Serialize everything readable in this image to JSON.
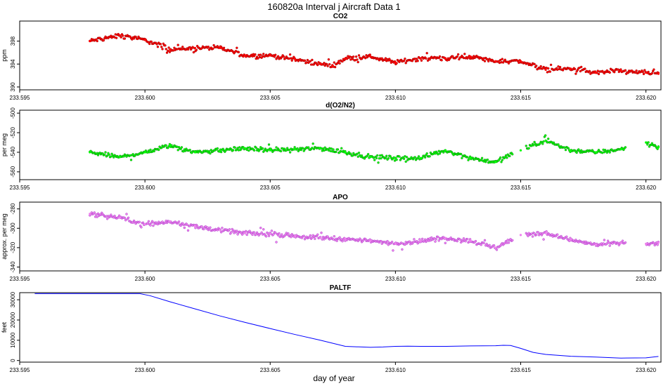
{
  "figure": {
    "title": "160820a   Interval j Aircraft Data 1",
    "xlabel": "day of year"
  },
  "chart_data": [
    {
      "type": "scatter",
      "title": "CO2",
      "xlabel": "day of year",
      "ylabel": "ppm",
      "xlim": [
        233.595,
        233.6206
      ],
      "ylim": [
        389.5,
        401.5
      ],
      "xticks": [
        "233.595",
        "233.600",
        "233.605",
        "233.610",
        "233.615",
        "233.620"
      ],
      "yticks": [
        "390",
        "394",
        "398"
      ],
      "grid": false,
      "color": "#ff0000",
      "x": [
        233.5978,
        233.599,
        233.6,
        233.601,
        233.602,
        233.603,
        233.604,
        233.605,
        233.606,
        233.607,
        233.6075,
        233.608,
        233.609,
        233.61,
        233.611,
        233.612,
        233.613,
        233.614,
        233.615,
        233.616,
        233.617,
        233.618,
        233.619,
        233.62,
        233.6205
      ],
      "y": [
        398.0,
        399.0,
        398.2,
        396.5,
        396.8,
        396.8,
        395.5,
        395.5,
        394.8,
        394.0,
        393.7,
        395.0,
        395.3,
        394.3,
        395.0,
        395.0,
        395.3,
        394.5,
        394.5,
        393.0,
        393.2,
        392.5,
        392.8,
        392.5,
        392.3
      ]
    },
    {
      "type": "scatter",
      "title": "d(O2/N2)",
      "xlabel": "day of year",
      "ylabel": "per meg",
      "xlim": [
        233.595,
        233.6206
      ],
      "ylim": [
        -568,
        -497
      ],
      "xticks": [
        "233.595",
        "233.600",
        "233.605",
        "233.610",
        "233.615",
        "233.620"
      ],
      "yticks": [
        "-500",
        "-520",
        "-540",
        "-560"
      ],
      "grid": false,
      "color": "#00ff00",
      "x": [
        233.5978,
        233.599,
        233.6,
        233.601,
        233.602,
        233.603,
        233.604,
        233.605,
        233.606,
        233.607,
        233.608,
        233.609,
        233.61,
        233.611,
        233.612,
        233.613,
        233.614,
        233.615,
        233.616,
        233.617,
        233.618,
        233.619,
        233.62,
        233.6205
      ],
      "y": [
        -540,
        -545,
        -540,
        -533,
        -540,
        -538,
        -536,
        -538,
        -537,
        -536,
        -540,
        -545,
        -546,
        -546,
        -538,
        -546,
        -550,
        -538,
        -528,
        -538,
        -540,
        -537,
        -530,
        -535
      ]
    },
    {
      "type": "scatter",
      "title": "APO",
      "xlabel": "day of year",
      "ylabel": "approx. per meg",
      "xlim": [
        233.595,
        233.6206
      ],
      "ylim": [
        -344,
        -273
      ],
      "xticks": [
        "233.595",
        "233.600",
        "233.605",
        "233.610",
        "233.615",
        "233.620"
      ],
      "yticks": [
        "-280",
        "-300",
        "-320",
        "-340"
      ],
      "grid": false,
      "color": "#ee82ee",
      "x": [
        233.5978,
        233.599,
        233.6,
        233.601,
        233.602,
        233.603,
        233.604,
        233.605,
        233.606,
        233.607,
        233.608,
        233.609,
        233.61,
        233.611,
        233.612,
        233.613,
        233.614,
        233.615,
        233.616,
        233.617,
        233.618,
        233.619,
        233.62,
        233.6205
      ],
      "y": [
        -285,
        -289,
        -296,
        -293,
        -298,
        -302,
        -305,
        -306,
        -308,
        -310,
        -311,
        -313,
        -316,
        -313,
        -310,
        -313,
        -320,
        -307,
        -305,
        -312,
        -317,
        -315,
        -316,
        -315
      ]
    },
    {
      "type": "line",
      "title": "PALTF",
      "xlabel": "day of year",
      "ylabel": "feet",
      "xlim": [
        233.595,
        233.6206
      ],
      "ylim": [
        -800,
        33500
      ],
      "xticks": [
        "233.595",
        "233.600",
        "233.605",
        "233.610",
        "233.615",
        "233.620"
      ],
      "yticks": [
        "0",
        "10000",
        "20000",
        "30000"
      ],
      "grid": false,
      "color": "#0000ff",
      "x": [
        233.5956,
        233.597,
        233.5985,
        233.5998,
        233.6002,
        233.601,
        233.602,
        233.603,
        233.604,
        233.605,
        233.606,
        233.607,
        233.608,
        233.609,
        233.6095,
        233.61,
        233.6105,
        233.611,
        233.612,
        233.613,
        233.614,
        233.6143,
        233.6146,
        233.615,
        233.6155,
        233.616,
        233.617,
        233.618,
        233.619,
        233.62,
        233.6205
      ],
      "y": [
        33000,
        33000,
        33000,
        33000,
        32000,
        29000,
        25500,
        22000,
        18800,
        15800,
        12800,
        10000,
        7000,
        6500,
        6700,
        7000,
        7100,
        7000,
        7000,
        7200,
        7300,
        7500,
        7400,
        6000,
        4000,
        3000,
        2100,
        1700,
        1200,
        1300,
        2000
      ]
    }
  ]
}
